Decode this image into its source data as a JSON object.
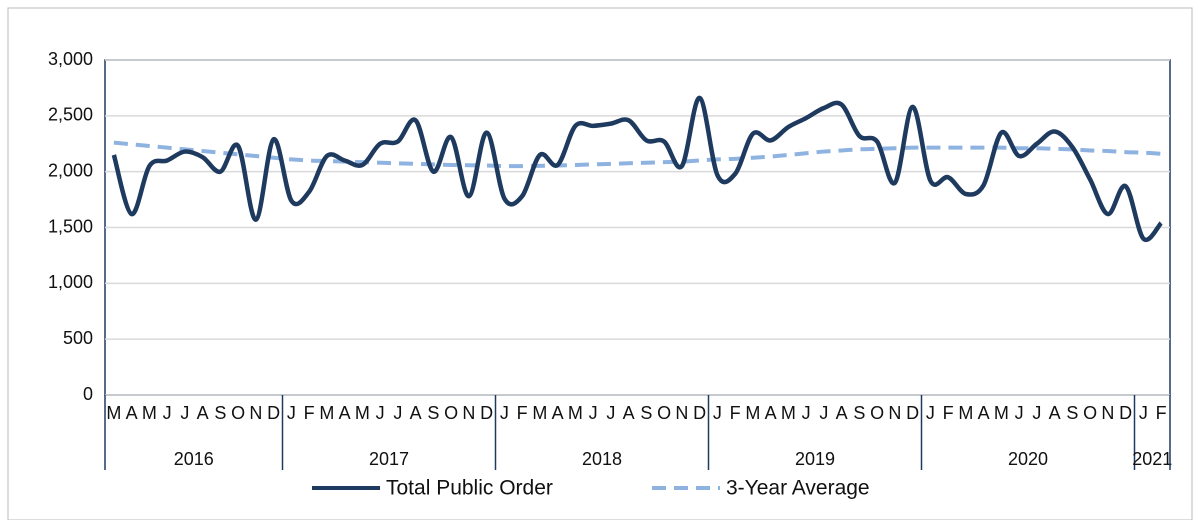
{
  "chart_data": {
    "type": "line",
    "groups": [
      {
        "label": "2016",
        "categories": [
          "M",
          "A",
          "M",
          "J",
          "J",
          "A",
          "S",
          "O",
          "N",
          "D"
        ]
      },
      {
        "label": "2017",
        "categories": [
          "J",
          "F",
          "M",
          "A",
          "M",
          "J",
          "J",
          "A",
          "S",
          "O",
          "N",
          "D"
        ]
      },
      {
        "label": "2018",
        "categories": [
          "J",
          "F",
          "M",
          "A",
          "M",
          "J",
          "J",
          "A",
          "S",
          "O",
          "N",
          "D"
        ]
      },
      {
        "label": "2019",
        "categories": [
          "J",
          "F",
          "M",
          "A",
          "M",
          "J",
          "J",
          "A",
          "S",
          "O",
          "N",
          "D"
        ]
      },
      {
        "label": "2020",
        "categories": [
          "J",
          "F",
          "M",
          "A",
          "M",
          "J",
          "J",
          "A",
          "S",
          "O",
          "N",
          "D"
        ]
      },
      {
        "label": "2021",
        "categories": [
          "J",
          "F"
        ]
      }
    ],
    "series": [
      {
        "name": "Total Public Order",
        "color": "#1f3a5f",
        "dashed": false,
        "values": [
          2150,
          1620,
          2050,
          2100,
          2180,
          2130,
          2000,
          2230,
          1570,
          2290,
          1740,
          1820,
          2140,
          2100,
          2060,
          2250,
          2270,
          2460,
          2000,
          2310,
          1780,
          2350,
          1760,
          1780,
          2150,
          2060,
          2410,
          2410,
          2430,
          2460,
          2280,
          2270,
          2050,
          2660,
          1970,
          1980,
          2340,
          2280,
          2400,
          2480,
          2570,
          2600,
          2320,
          2270,
          1900,
          2580,
          1920,
          1950,
          1800,
          1880,
          2350,
          2140,
          2250,
          2360,
          2220,
          1930,
          1620,
          1870,
          1400,
          1540
        ]
      },
      {
        "name": "3-Year Average",
        "color": "#8fb3e0",
        "dashed": true,
        "values": [
          2260,
          2245,
          2230,
          2215,
          2200,
          2185,
          2170,
          2155,
          2140,
          2125,
          2110,
          2100,
          2095,
          2090,
          2085,
          2080,
          2075,
          2070,
          2065,
          2060,
          2058,
          2055,
          2050,
          2050,
          2052,
          2055,
          2060,
          2065,
          2070,
          2075,
          2080,
          2085,
          2090,
          2100,
          2110,
          2115,
          2125,
          2135,
          2150,
          2165,
          2180,
          2190,
          2200,
          2205,
          2210,
          2215,
          2215,
          2215,
          2215,
          2215,
          2215,
          2210,
          2210,
          2205,
          2200,
          2190,
          2185,
          2175,
          2170,
          2160
        ]
      }
    ],
    "ylim": [
      0,
      3000
    ],
    "yticks": [
      0,
      500,
      {
        "value": 1000,
        "label": "1,000"
      },
      {
        "value": 1500,
        "label": "1,500"
      },
      {
        "value": 2000,
        "label": "2,000"
      },
      {
        "value": 2500,
        "label": "2,500"
      },
      {
        "value": 3000,
        "label": "3,000"
      }
    ],
    "grid": true
  }
}
